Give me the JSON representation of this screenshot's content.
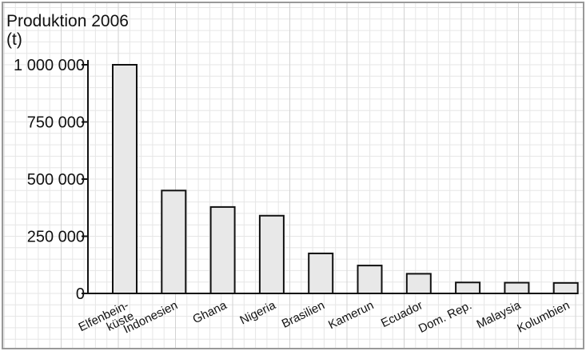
{
  "chart_data": {
    "type": "bar",
    "title": "Produktion 2006",
    "ylabel": "(t)",
    "xlabel": "",
    "categories": [
      "Elfenbein-\nküste",
      "Indonesien",
      "Ghana",
      "Nigeria",
      "Brasilien",
      "Kamerun",
      "Ecuador",
      "Dom. Rep.",
      "Malaysia",
      "Kolumbien"
    ],
    "values": [
      1000000,
      450000,
      378000,
      340000,
      175000,
      122000,
      86000,
      48000,
      47000,
      46000
    ],
    "yticks": [
      0,
      250000,
      500000,
      750000,
      1000000
    ],
    "ytick_labels": [
      "0",
      "250 000",
      "500 000",
      "750 000",
      "1 000 000"
    ],
    "ylim": [
      0,
      1000000
    ],
    "grid": true,
    "colors": {
      "bar_fill": "#e8e8e8",
      "bar_stroke": "#111111",
      "grid_minor": "#e6e6e6",
      "grid_major": "#d2d2d2",
      "frame": "#999999"
    }
  }
}
